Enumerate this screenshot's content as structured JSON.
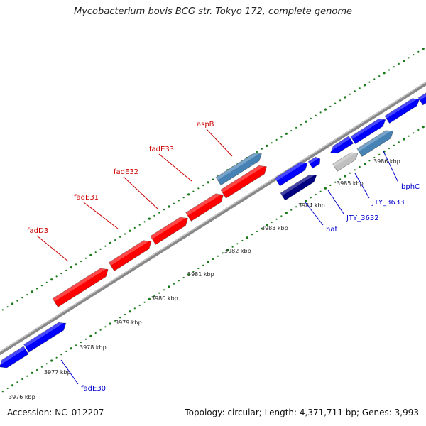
{
  "title": "Mycobacterium bovis BCG str. Tokyo 172, complete genome",
  "footer": {
    "accession": "Accession: NC_012207",
    "summary": "Topology: circular; Length: 4,371,711 bp; Genes: 3,993"
  },
  "colors": {
    "gene_red": "#ff0000",
    "gene_blue": "#0000ff",
    "gene_steelblue": "#4682b4",
    "gene_navy": "#000080",
    "gene_gray": "#c0c0c0",
    "label_red": "#cc0000",
    "label_blue": "#0000cc",
    "backbone": "#808080",
    "tick_green": "#1a7a1a"
  },
  "ticks": [
    {
      "label": "3976 kbp"
    },
    {
      "label": "3977 kbp"
    },
    {
      "label": "3978 kbp"
    },
    {
      "label": "3979 kbp"
    },
    {
      "label": "3980 kbp"
    },
    {
      "label": "3981 kbp"
    },
    {
      "label": "3982 kbp"
    },
    {
      "label": "3983 kbp"
    },
    {
      "label": "3984 kbp"
    },
    {
      "label": "3985 kbp"
    },
    {
      "label": "3986 kbp"
    }
  ],
  "gene_labels": [
    {
      "name": "fadD3",
      "color": "red"
    },
    {
      "name": "fadE31",
      "color": "red"
    },
    {
      "name": "fadE32",
      "color": "red"
    },
    {
      "name": "fadE33",
      "color": "red"
    },
    {
      "name": "aspB",
      "color": "red"
    },
    {
      "name": "fadE30",
      "color": "blue"
    },
    {
      "name": "nat",
      "color": "blue"
    },
    {
      "name": "JTY_3632",
      "color": "blue"
    },
    {
      "name": "JTY_3633",
      "color": "blue"
    },
    {
      "name": "bphC",
      "color": "blue"
    }
  ]
}
